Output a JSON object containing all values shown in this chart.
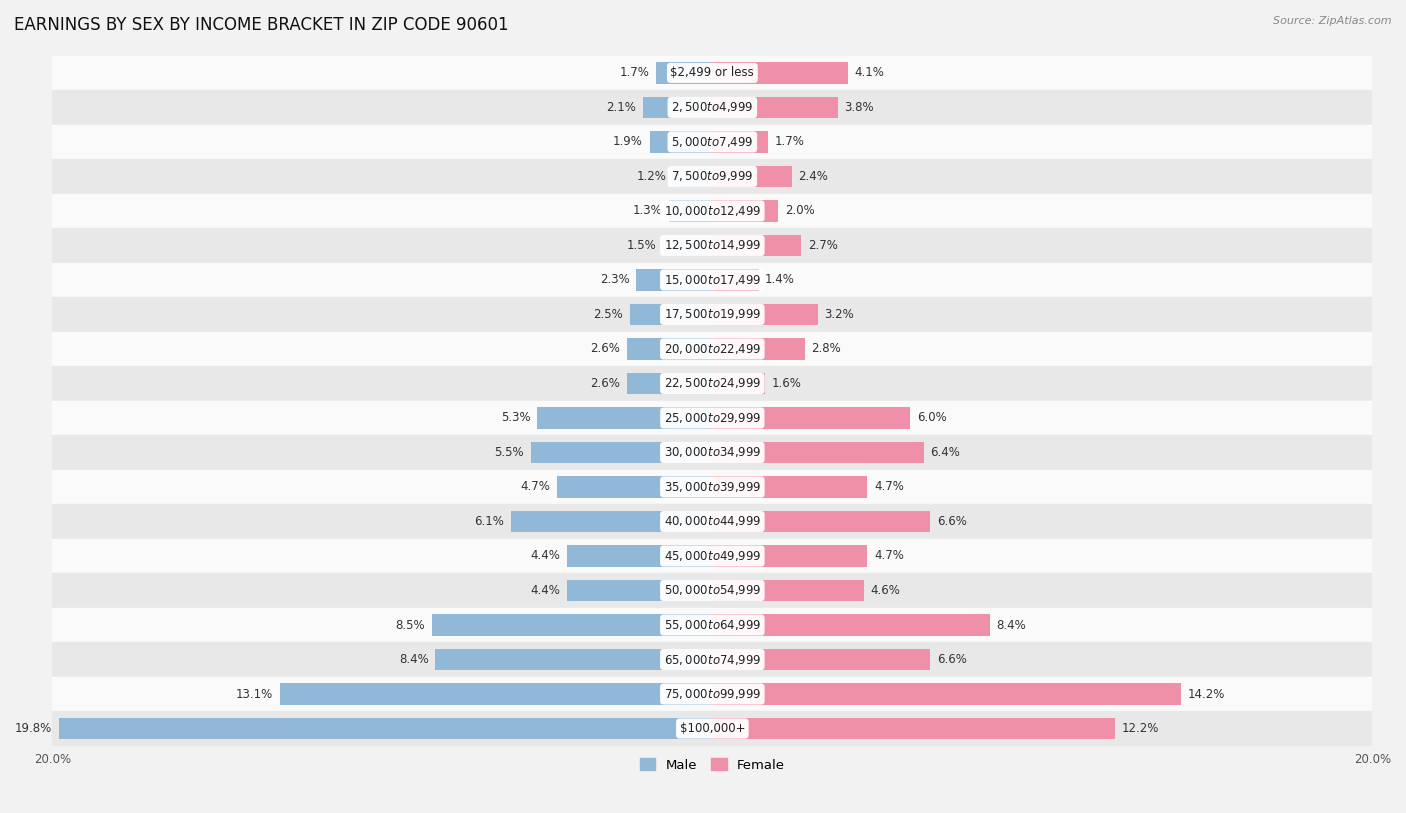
{
  "title": "EARNINGS BY SEX BY INCOME BRACKET IN ZIP CODE 90601",
  "source": "Source: ZipAtlas.com",
  "categories": [
    "$2,499 or less",
    "$2,500 to $4,999",
    "$5,000 to $7,499",
    "$7,500 to $9,999",
    "$10,000 to $12,499",
    "$12,500 to $14,999",
    "$15,000 to $17,499",
    "$17,500 to $19,999",
    "$20,000 to $22,499",
    "$22,500 to $24,999",
    "$25,000 to $29,999",
    "$30,000 to $34,999",
    "$35,000 to $39,999",
    "$40,000 to $44,999",
    "$45,000 to $49,999",
    "$50,000 to $54,999",
    "$55,000 to $64,999",
    "$65,000 to $74,999",
    "$75,000 to $99,999",
    "$100,000+"
  ],
  "male_values": [
    1.7,
    2.1,
    1.9,
    1.2,
    1.3,
    1.5,
    2.3,
    2.5,
    2.6,
    2.6,
    5.3,
    5.5,
    4.7,
    6.1,
    4.4,
    4.4,
    8.5,
    8.4,
    13.1,
    19.8
  ],
  "female_values": [
    4.1,
    3.8,
    1.7,
    2.4,
    2.0,
    2.7,
    1.4,
    3.2,
    2.8,
    1.6,
    6.0,
    6.4,
    4.7,
    6.6,
    4.7,
    4.6,
    8.4,
    6.6,
    14.2,
    12.2
  ],
  "male_color": "#92b8d8",
  "female_color": "#f090a8",
  "male_label": "Male",
  "female_label": "Female",
  "bg_color": "#f2f2f2",
  "row_bg_light": "#fafafa",
  "row_bg_dark": "#e8e8e8",
  "xlim": 20.0,
  "title_fontsize": 12,
  "label_fontsize": 8.5,
  "tick_fontsize": 8.5,
  "source_fontsize": 8
}
